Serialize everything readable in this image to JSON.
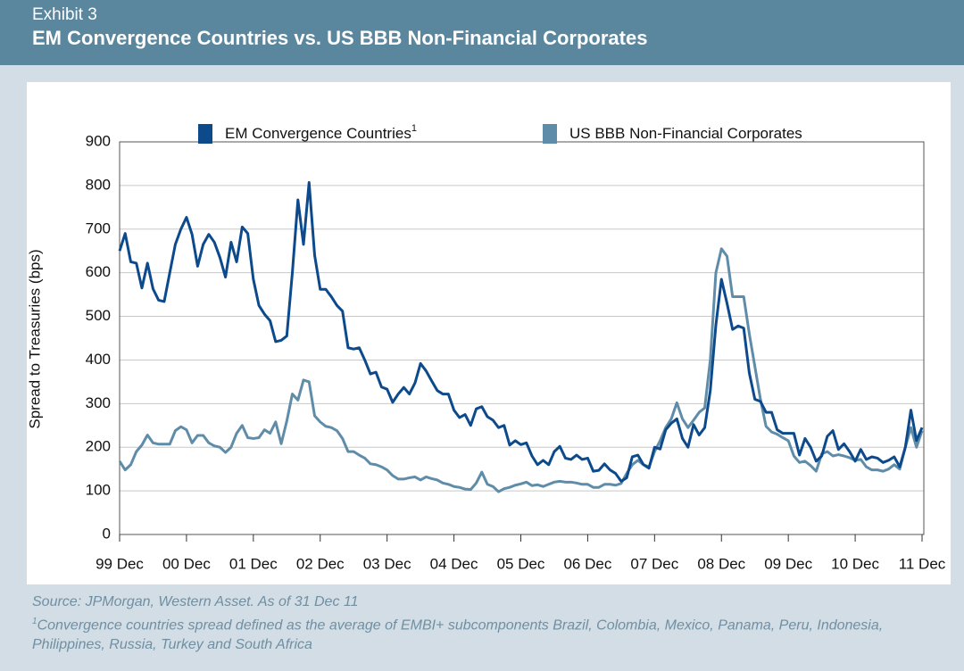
{
  "header": {
    "exhibit": "Exhibit 3"
  },
  "chart_data": {
    "type": "line",
    "title": "EM Convergence Countries vs. US BBB Non-Financial Corporates",
    "y_label": "Spread to Treasuries (bps)",
    "categories": [
      "99 Dec",
      null,
      null,
      null,
      null,
      null,
      null,
      null,
      null,
      null,
      null,
      null,
      "00 Dec",
      null,
      null,
      null,
      null,
      null,
      null,
      null,
      null,
      null,
      null,
      null,
      "01 Dec",
      null,
      null,
      null,
      null,
      null,
      null,
      null,
      null,
      null,
      null,
      null,
      "02 Dec",
      null,
      null,
      null,
      null,
      null,
      null,
      null,
      null,
      null,
      null,
      null,
      "03 Dec",
      null,
      null,
      null,
      null,
      null,
      null,
      null,
      null,
      null,
      null,
      null,
      "04 Dec",
      null,
      null,
      null,
      null,
      null,
      null,
      null,
      null,
      null,
      null,
      null,
      "05 Dec",
      null,
      null,
      null,
      null,
      null,
      null,
      null,
      null,
      null,
      null,
      null,
      "06 Dec",
      null,
      null,
      null,
      null,
      null,
      null,
      null,
      null,
      null,
      null,
      null,
      "07 Dec",
      null,
      null,
      null,
      null,
      null,
      null,
      null,
      null,
      null,
      null,
      null,
      "08 Dec",
      null,
      null,
      null,
      null,
      null,
      null,
      null,
      null,
      null,
      null,
      null,
      "09 Dec",
      null,
      null,
      null,
      null,
      null,
      null,
      null,
      null,
      null,
      null,
      null,
      "10 Dec",
      null,
      null,
      null,
      null,
      null,
      null,
      null,
      null,
      null,
      null,
      null,
      "11 Dec"
    ],
    "series": [
      {
        "name": "EM Convergence Countries",
        "color": "#0c4a8c",
        "values": [
          650,
          690,
          625,
          622,
          565,
          622,
          563,
          537,
          534,
          600,
          665,
          700,
          727,
          688,
          615,
          665,
          688,
          670,
          635,
          590,
          670,
          625,
          705,
          690,
          585,
          525,
          505,
          490,
          442,
          445,
          455,
          600,
          767,
          665,
          807,
          640,
          562,
          562,
          545,
          525,
          512,
          428,
          425,
          428,
          400,
          368,
          372,
          338,
          333,
          303,
          322,
          337,
          322,
          347,
          392,
          375,
          352,
          330,
          322,
          322,
          285,
          268,
          275,
          250,
          288,
          293,
          270,
          262,
          245,
          250,
          205,
          215,
          206,
          210,
          180,
          160,
          170,
          160,
          190,
          202,
          175,
          172,
          182,
          172,
          175,
          145,
          147,
          162,
          148,
          140,
          122,
          130,
          178,
          182,
          160,
          152,
          200,
          196,
          240,
          255,
          265,
          220,
          200,
          252,
          228,
          245,
          330,
          480,
          585,
          530,
          470,
          478,
          473,
          370,
          310,
          305,
          280,
          280,
          240,
          232,
          232,
          232,
          182,
          220,
          200,
          168,
          180,
          225,
          238,
          195,
          208,
          190,
          168,
          195,
          172,
          178,
          175,
          165,
          170,
          178,
          155,
          200,
          285,
          215,
          245
        ]
      },
      {
        "name": "US BBB Non-Financial Corporates",
        "color": "#5f8ca8",
        "values": [
          168,
          148,
          160,
          190,
          205,
          228,
          210,
          207,
          207,
          207,
          238,
          247,
          240,
          210,
          227,
          227,
          210,
          203,
          200,
          188,
          200,
          232,
          250,
          222,
          220,
          222,
          240,
          232,
          258,
          208,
          260,
          322,
          308,
          354,
          350,
          272,
          258,
          248,
          245,
          238,
          220,
          190,
          190,
          182,
          175,
          162,
          160,
          155,
          148,
          135,
          127,
          127,
          130,
          132,
          125,
          132,
          128,
          125,
          118,
          115,
          110,
          108,
          104,
          103,
          118,
          143,
          115,
          110,
          98,
          105,
          108,
          113,
          116,
          120,
          112,
          114,
          110,
          115,
          120,
          122,
          120,
          120,
          118,
          115,
          115,
          108,
          108,
          115,
          115,
          113,
          117,
          140,
          160,
          170,
          160,
          155,
          190,
          215,
          245,
          265,
          302,
          265,
          245,
          262,
          280,
          290,
          400,
          600,
          655,
          638,
          545,
          545,
          545,
          460,
          385,
          310,
          248,
          235,
          230,
          222,
          215,
          180,
          165,
          168,
          158,
          145,
          185,
          190,
          180,
          183,
          180,
          176,
          170,
          172,
          155,
          148,
          148,
          145,
          150,
          160,
          150,
          200,
          245,
          200,
          238
        ]
      }
    ],
    "ylim": [
      0,
      900
    ],
    "yticks": [
      0,
      100,
      200,
      300,
      400,
      500,
      600,
      700,
      800,
      900
    ],
    "grid": true,
    "source": "Source: JPMorgan, Western Asset. As of 31 Dec 11",
    "footnote": {
      "marker": "1",
      "text": "Convergence countries spread defined as the average of EMBI+ subcomponents Brazil, Colombia, Mexico, Panama, Peru, Indonesia, Philippines, Russia, Turkey and South Africa"
    }
  }
}
